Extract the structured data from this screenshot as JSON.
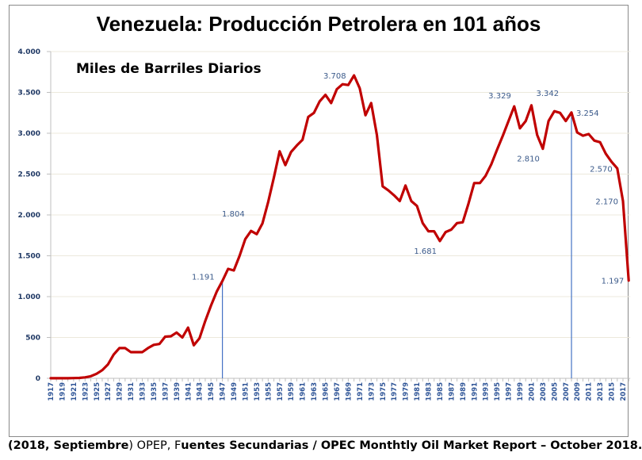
{
  "chart_data": {
    "type": "line",
    "title": "Venezuela: Producción Petrolera en 101 años",
    "subtitle": "Miles de Barriles Diarios",
    "xlabel": "",
    "ylabel": "Miles de Barriles Diarios",
    "ylim": [
      0,
      4000
    ],
    "yticks": [
      0,
      500,
      1000,
      1500,
      2000,
      2500,
      3000,
      3500,
      4000
    ],
    "ytick_labels": [
      "0",
      "500",
      "1.000",
      "1.500",
      "2.000",
      "2.500",
      "3.000",
      "3.500",
      "4.000"
    ],
    "xticks": [
      "1917",
      "1919",
      "1921",
      "1923",
      "1925",
      "1927",
      "1929",
      "1931",
      "1933",
      "1935",
      "1937",
      "1939",
      "1941",
      "1943",
      "1945",
      "1947",
      "1949",
      "1951",
      "1953",
      "1955",
      "1957",
      "1959",
      "1961",
      "1963",
      "1965",
      "1967",
      "1969",
      "1971",
      "1973",
      "1975",
      "1977",
      "1979",
      "1981",
      "1983",
      "1985",
      "1987",
      "1989",
      "1991",
      "1993",
      "1995",
      "1997",
      "1999",
      "2001",
      "2003",
      "2005",
      "2007",
      "2009",
      "2011",
      "2013",
      "2015",
      "2017"
    ],
    "grid": true,
    "legend": "none",
    "series": [
      {
        "name": "Producción",
        "color": "#c00000",
        "x": [
          1917,
          1918,
          1919,
          1920,
          1921,
          1922,
          1923,
          1924,
          1925,
          1926,
          1927,
          1928,
          1929,
          1930,
          1931,
          1932,
          1933,
          1934,
          1935,
          1936,
          1937,
          1938,
          1939,
          1940,
          1941,
          1942,
          1943,
          1944,
          1945,
          1946,
          1947,
          1948,
          1949,
          1950,
          1951,
          1952,
          1953,
          1954,
          1955,
          1956,
          1957,
          1958,
          1959,
          1960,
          1961,
          1962,
          1963,
          1964,
          1965,
          1966,
          1967,
          1968,
          1969,
          1970,
          1971,
          1972,
          1973,
          1974,
          1975,
          1976,
          1977,
          1978,
          1979,
          1980,
          1981,
          1982,
          1983,
          1984,
          1985,
          1986,
          1987,
          1988,
          1989,
          1990,
          1991,
          1992,
          1993,
          1994,
          1995,
          1996,
          1997,
          1998,
          1999,
          2000,
          2001,
          2002,
          2003,
          2004,
          2005,
          2006,
          2007,
          2008,
          2009,
          2010,
          2011,
          2012,
          2013,
          2014,
          2015,
          2016,
          2017,
          2018
        ],
        "values": [
          1,
          1,
          1,
          1,
          3,
          5,
          12,
          25,
          55,
          100,
          170,
          290,
          370,
          370,
          320,
          320,
          320,
          370,
          410,
          420,
          510,
          515,
          560,
          500,
          620,
          405,
          490,
          700,
          890,
          1060,
          1191,
          1340,
          1320,
          1500,
          1705,
          1804,
          1765,
          1895,
          2160,
          2460,
          2780,
          2610,
          2770,
          2850,
          2920,
          3200,
          3250,
          3390,
          3470,
          3370,
          3540,
          3600,
          3590,
          3708,
          3550,
          3220,
          3370,
          2980,
          2350,
          2300,
          2240,
          2170,
          2360,
          2170,
          2110,
          1900,
          1800,
          1800,
          1681,
          1790,
          1820,
          1900,
          1910,
          2140,
          2390,
          2390,
          2480,
          2620,
          2800,
          2970,
          3150,
          3329,
          3060,
          3150,
          3342,
          2980,
          2810,
          3150,
          3270,
          3250,
          3150,
          3254,
          3010,
          2970,
          2990,
          2910,
          2890,
          2750,
          2650,
          2570,
          2170,
          1197
        ]
      }
    ],
    "annotations": [
      {
        "year": 1947,
        "label": "1.191",
        "position": "left"
      },
      {
        "year": 1952,
        "label": "1.804",
        "position": "left"
      },
      {
        "year": 1970,
        "label": "3.708",
        "position": "left"
      },
      {
        "year": 1985,
        "label": "1.681",
        "position": "below-left"
      },
      {
        "year": 1998,
        "label": "3.329",
        "position": "above-left"
      },
      {
        "year": 2001,
        "label": "3.342",
        "position": "above-right"
      },
      {
        "year": 2003,
        "label": "2.810",
        "position": "below-left"
      },
      {
        "year": 2008,
        "label": "3.254",
        "position": "right"
      },
      {
        "year": 2016,
        "label": "2.570",
        "position": "left"
      },
      {
        "year": 2017,
        "label": "2.170",
        "position": "left"
      },
      {
        "year": 2018,
        "label": "1.197",
        "position": "left"
      }
    ],
    "reference_lines": [
      {
        "year": 1947,
        "color": "#4472c4"
      },
      {
        "year": 2008,
        "color": "#4472c4"
      }
    ]
  },
  "source": {
    "bold_part_1": "(2018, Septiembre",
    "normal_part_1": ") OPEP, ",
    "normal_part_2": "F",
    "bold_part_2": "uentes Secundarias / OPEC Monthtly Oil Market Report – October 2018."
  }
}
